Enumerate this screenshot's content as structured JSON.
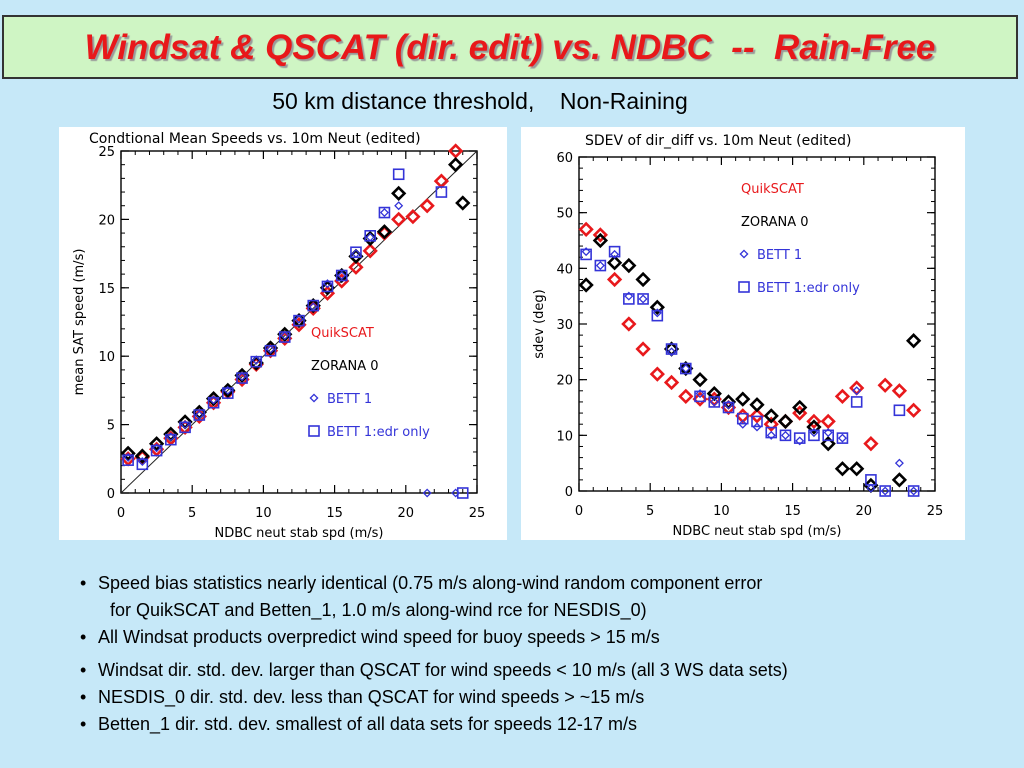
{
  "title": "Windsat & QSCAT (dir. edit) vs. NDBC  --  Rain-Free",
  "subtitle": "50 km distance threshold,    Non-Raining",
  "bullets": [
    {
      "text": "Speed bias statistics nearly identical (0.75 m/s along-wind random component error",
      "cont": "for QuikSCAT and Betten_1, 1.0 m/s along-wind rce for NESDIS_0)"
    },
    {
      "text": "All Windsat products overpredict wind speed for buoy speeds > 15 m/s"
    },
    {
      "text": "Windsat dir. std. dev. larger than QSCAT for wind speeds < 10 m/s (all 3 WS data sets)"
    },
    {
      "text": "NESDIS_0 dir. std. dev. less than QSCAT for wind speeds > ~15 m/s"
    },
    {
      "text": "Betten_1 dir. std. dev. smallest of all data sets for speeds 12-17 m/s"
    }
  ],
  "colors": {
    "quikscat": "#e8191c",
    "zorana": "#000000",
    "bett": "#3434d8",
    "title": "#e8181a"
  },
  "chart_data": [
    {
      "type": "scatter",
      "title": "Condtional Mean Speeds vs. 10m Neut (edited)",
      "xlabel": "NDBC neut stab spd (m/s)",
      "ylabel": "mean SAT speed (m/s)",
      "xlim": [
        0,
        25
      ],
      "ylim": [
        0,
        25
      ],
      "xticks": [
        "0",
        "5",
        "10",
        "15",
        "20",
        "25"
      ],
      "yticks": [
        "0",
        "5",
        "10",
        "15",
        "20",
        "25"
      ],
      "reference_line": "1:1",
      "legend_placement": "bottom-right",
      "series": [
        {
          "name": "QuikSCAT",
          "marker": "diamond",
          "color": "#e8191c",
          "x": [
            0.5,
            1.5,
            2.5,
            3.5,
            4.5,
            5.5,
            6.5,
            7.5,
            8.5,
            9.5,
            10.5,
            11.5,
            12.5,
            13.5,
            14.5,
            15.5,
            16.5,
            17.5,
            18.5,
            19.5,
            20.5,
            21.5,
            22.5,
            23.5
          ],
          "y": [
            2.5,
            2.6,
            3.2,
            4.0,
            4.8,
            5.6,
            6.6,
            7.4,
            8.3,
            9.4,
            10.4,
            11.3,
            12.3,
            13.5,
            14.6,
            15.5,
            16.5,
            17.7,
            19.0,
            20.0,
            20.2,
            21.0,
            22.8,
            25.0
          ]
        },
        {
          "name": "ZORANA 0",
          "marker": "diamond",
          "color": "#000000",
          "x": [
            0.5,
            1.5,
            2.5,
            3.5,
            4.5,
            5.5,
            6.5,
            7.5,
            8.5,
            9.5,
            10.5,
            11.5,
            12.5,
            13.5,
            14.5,
            15.5,
            16.5,
            17.5,
            18.5,
            19.5,
            23.5,
            24.0
          ],
          "y": [
            2.9,
            2.7,
            3.6,
            4.3,
            5.2,
            5.9,
            6.9,
            7.5,
            8.6,
            9.5,
            10.6,
            11.6,
            12.6,
            13.7,
            15.0,
            15.9,
            17.3,
            18.6,
            19.1,
            21.9,
            24.0,
            21.2
          ]
        },
        {
          "name": "BETT 1",
          "marker": "diamond-small",
          "color": "#3434d8",
          "x": [
            0.5,
            1.5,
            2.5,
            3.5,
            4.5,
            5.5,
            6.5,
            7.5,
            8.5,
            9.5,
            10.5,
            11.5,
            12.5,
            13.5,
            14.5,
            15.5,
            16.5,
            17.5,
            18.5,
            19.5,
            21.5,
            23.5
          ],
          "y": [
            2.6,
            2.3,
            3.3,
            4.1,
            5.0,
            5.7,
            6.8,
            7.5,
            8.5,
            9.7,
            10.5,
            11.5,
            12.7,
            13.6,
            15.3,
            15.9,
            17.5,
            18.7,
            20.5,
            21.0,
            0,
            0
          ]
        },
        {
          "name": "BETT 1:edr only",
          "marker": "square",
          "color": "#3434d8",
          "x": [
            0.5,
            1.5,
            2.5,
            3.5,
            4.5,
            5.5,
            6.5,
            7.5,
            8.5,
            9.5,
            10.5,
            11.5,
            12.5,
            13.5,
            14.5,
            15.5,
            16.5,
            17.5,
            18.5,
            19.5,
            22.5,
            24.0
          ],
          "y": [
            2.4,
            2.1,
            3.1,
            3.9,
            4.8,
            5.7,
            6.6,
            7.3,
            8.4,
            9.6,
            10.4,
            11.4,
            12.6,
            13.7,
            15.1,
            15.9,
            17.6,
            18.8,
            20.5,
            23.3,
            22.0,
            0
          ]
        }
      ]
    },
    {
      "type": "scatter",
      "title": "SDEV of dir_diff vs. 10m Neut (edited)",
      "xlabel": "NDBC neut stab spd (m/s)",
      "ylabel": "sdev (deg)",
      "xlim": [
        0,
        25
      ],
      "ylim": [
        0,
        60
      ],
      "xticks": [
        "0",
        "5",
        "10",
        "15",
        "20",
        "25"
      ],
      "yticks": [
        "0",
        "10",
        "20",
        "30",
        "40",
        "50",
        "60"
      ],
      "legend_placement": "top-right",
      "series": [
        {
          "name": "QuikSCAT",
          "marker": "diamond",
          "color": "#e8191c",
          "x": [
            0.5,
            1.5,
            2.5,
            3.5,
            4.5,
            5.5,
            6.5,
            7.5,
            8.5,
            9.5,
            10.5,
            11.5,
            12.5,
            13.5,
            14.5,
            15.5,
            16.5,
            17.5,
            18.5,
            19.5,
            20.5,
            21.5,
            22.5,
            23.5
          ],
          "y": [
            47,
            46,
            38,
            30,
            25.5,
            21,
            19.5,
            17,
            16.5,
            16.5,
            15,
            13.5,
            13.5,
            12,
            12.5,
            14,
            12.5,
            12.5,
            17,
            18.5,
            8.5,
            19,
            18,
            14.5
          ]
        },
        {
          "name": "ZORANA 0",
          "marker": "diamond",
          "color": "#000000",
          "x": [
            0.5,
            1.5,
            2.5,
            3.5,
            4.5,
            5.5,
            6.5,
            7.5,
            8.5,
            9.5,
            10.5,
            11.5,
            12.5,
            13.5,
            14.5,
            15.5,
            16.5,
            17.5,
            18.5,
            19.5,
            20.5,
            22.5,
            23.5
          ],
          "y": [
            37,
            45,
            41,
            40.5,
            38,
            33,
            25.5,
            22,
            20,
            17.5,
            16,
            16.5,
            15.5,
            13.5,
            12.5,
            15,
            11.5,
            8.5,
            4,
            4,
            1,
            2,
            27
          ]
        },
        {
          "name": "BETT 1",
          "marker": "diamond-small",
          "color": "#3434d8",
          "x": [
            0.5,
            1.5,
            2.5,
            3.5,
            4.5,
            5.5,
            6.5,
            7.5,
            8.5,
            9.5,
            10.5,
            11.5,
            12.5,
            13.5,
            14.5,
            15.5,
            16.5,
            17.5,
            18.5,
            19.5,
            20.5,
            21.5,
            22.5,
            23.5
          ],
          "y": [
            43,
            40.5,
            42.5,
            35,
            34.5,
            32,
            25,
            22,
            17.5,
            16,
            15.5,
            12,
            11.5,
            10,
            10,
            9,
            10.5,
            10.5,
            9.5,
            18,
            0.5,
            0,
            5,
            0
          ]
        },
        {
          "name": "BETT 1:edr only",
          "marker": "square",
          "color": "#3434d8",
          "x": [
            0.5,
            1.5,
            2.5,
            3.5,
            4.5,
            5.5,
            6.5,
            7.5,
            8.5,
            9.5,
            10.5,
            11.5,
            12.5,
            13.5,
            14.5,
            15.5,
            16.5,
            17.5,
            18.5,
            19.5,
            20.5,
            21.5,
            22.5,
            23.5
          ],
          "y": [
            42.5,
            40.5,
            43,
            34.5,
            34.5,
            31.5,
            25.5,
            22,
            17,
            16,
            15,
            13,
            12.5,
            10.5,
            10,
            9.5,
            10,
            10,
            9.5,
            16,
            2,
            0,
            14.5,
            0
          ]
        }
      ]
    }
  ]
}
